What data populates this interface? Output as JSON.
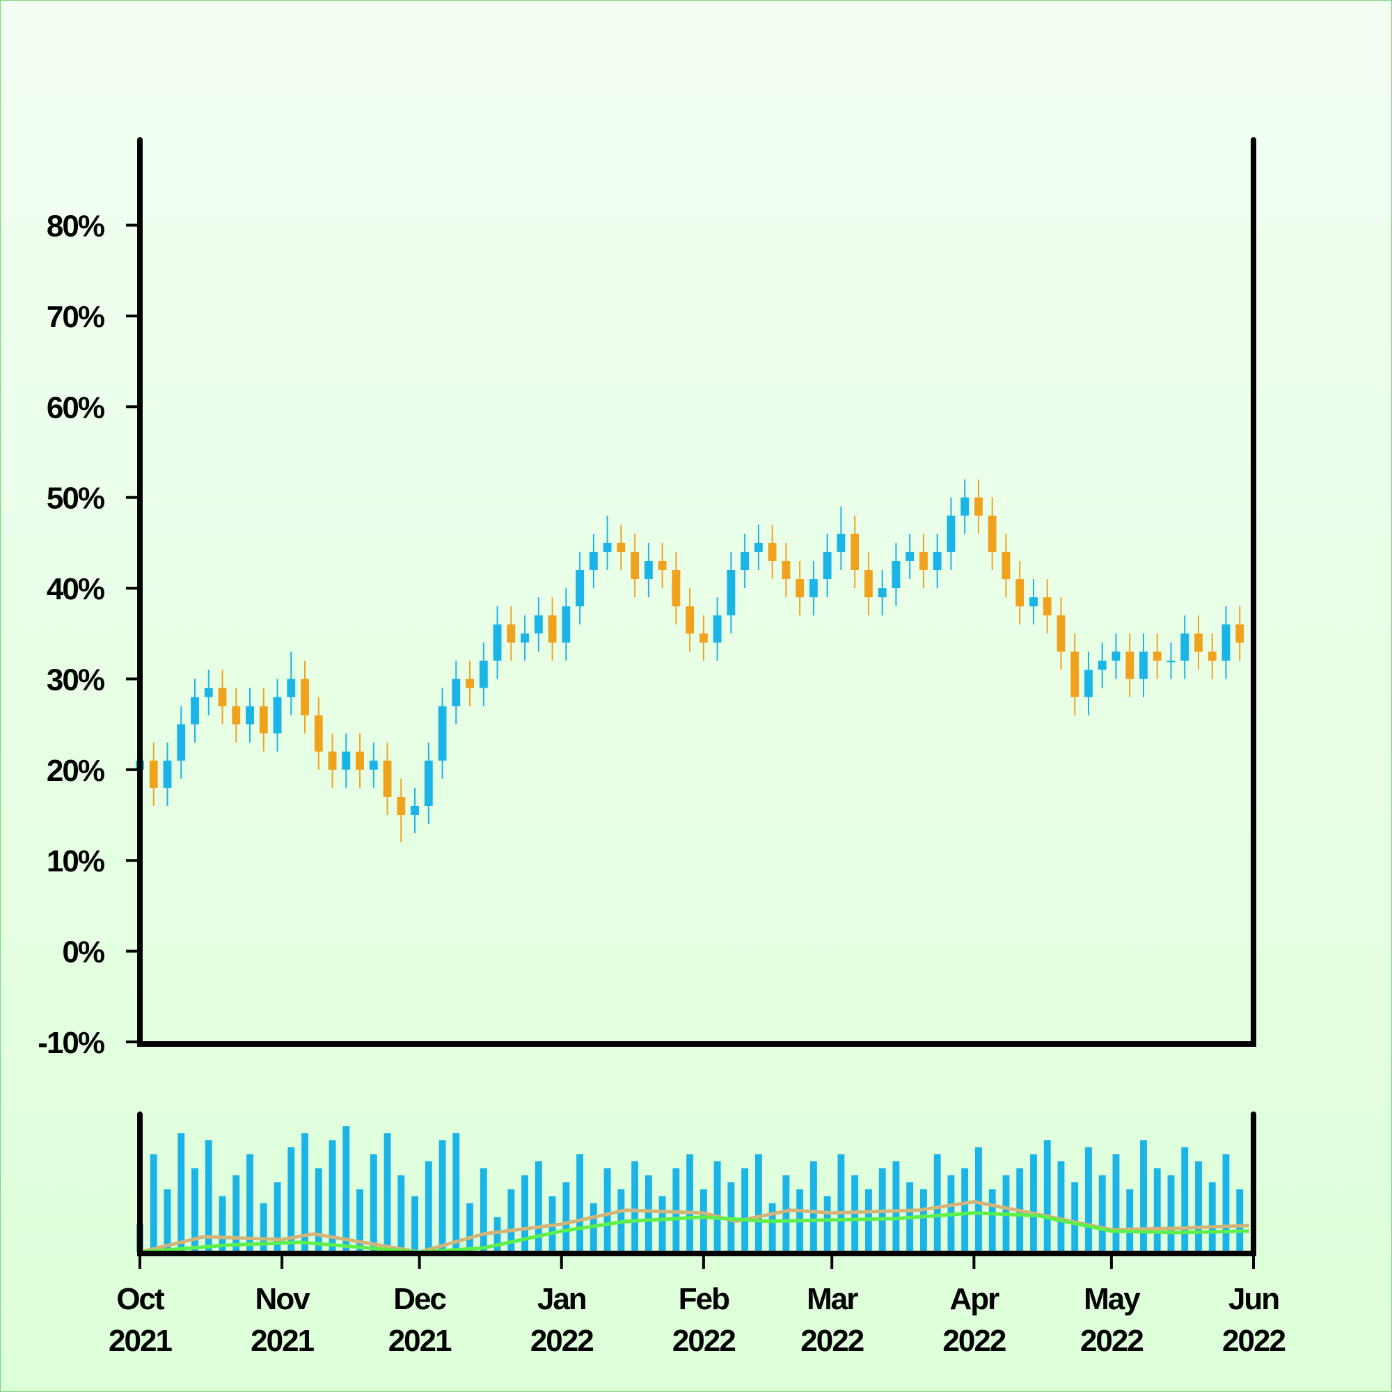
{
  "chart_data": [
    {
      "type": "candlestick",
      "x": [
        "2021-10-01",
        "2021-10-04",
        "2021-10-07",
        "2021-10-10",
        "2021-10-13",
        "2021-10-16",
        "2021-10-19",
        "2021-10-22",
        "2021-10-25",
        "2021-10-28",
        "2021-10-31",
        "2021-11-03",
        "2021-11-06",
        "2021-11-09",
        "2021-11-12",
        "2021-11-15",
        "2021-11-18",
        "2021-11-21",
        "2021-11-24",
        "2021-11-27",
        "2021-11-30",
        "2021-12-03",
        "2021-12-06",
        "2021-12-09",
        "2021-12-12",
        "2021-12-15",
        "2021-12-18",
        "2021-12-21",
        "2021-12-24",
        "2021-12-27",
        "2021-12-30",
        "2022-01-02",
        "2022-01-05",
        "2022-01-08",
        "2022-01-11",
        "2022-01-14",
        "2022-01-17",
        "2022-01-20",
        "2022-01-23",
        "2022-01-26",
        "2022-01-29",
        "2022-02-01",
        "2022-02-04",
        "2022-02-07",
        "2022-02-10",
        "2022-02-13",
        "2022-02-16",
        "2022-02-19",
        "2022-02-22",
        "2022-02-25",
        "2022-02-28",
        "2022-03-03",
        "2022-03-06",
        "2022-03-09",
        "2022-03-12",
        "2022-03-15",
        "2022-03-18",
        "2022-03-21",
        "2022-03-24",
        "2022-03-27",
        "2022-03-30",
        "2022-04-02",
        "2022-04-05",
        "2022-04-08",
        "2022-04-11",
        "2022-04-14",
        "2022-04-17",
        "2022-04-20",
        "2022-04-23",
        "2022-04-26",
        "2022-04-29",
        "2022-05-02",
        "2022-05-05",
        "2022-05-08",
        "2022-05-11",
        "2022-05-14",
        "2022-05-17",
        "2022-05-20",
        "2022-05-23",
        "2022-05-26",
        "2022-05-29"
      ],
      "open": [
        20,
        21,
        18,
        21,
        25,
        28,
        29,
        27,
        25,
        27,
        24,
        28,
        30,
        26,
        22,
        20,
        22,
        20,
        21,
        17,
        15,
        16,
        21,
        27,
        30,
        29,
        32,
        36,
        34,
        35,
        37,
        34,
        38,
        42,
        44,
        45,
        44,
        41,
        43,
        42,
        38,
        35,
        34,
        37,
        42,
        44,
        45,
        43,
        41,
        39,
        41,
        44,
        46,
        42,
        39,
        40,
        43,
        44,
        42,
        44,
        48,
        50,
        48,
        44,
        41,
        38,
        39,
        37,
        33,
        28,
        31,
        32,
        33,
        30,
        33,
        32,
        32,
        35,
        33,
        32,
        36
      ],
      "high": [
        23,
        23,
        23,
        27,
        30,
        31,
        31,
        29,
        29,
        29,
        30,
        33,
        32,
        28,
        24,
        24,
        24,
        23,
        23,
        19,
        18,
        23,
        29,
        32,
        32,
        34,
        38,
        38,
        37,
        39,
        39,
        40,
        44,
        46,
        48,
        47,
        46,
        45,
        45,
        44,
        40,
        37,
        39,
        44,
        46,
        47,
        47,
        45,
        43,
        43,
        46,
        49,
        48,
        44,
        42,
        45,
        46,
        46,
        46,
        50,
        52,
        52,
        50,
        46,
        43,
        41,
        41,
        39,
        35,
        33,
        34,
        35,
        35,
        35,
        35,
        34,
        37,
        37,
        35,
        38,
        38
      ],
      "low": [
        18,
        16,
        16,
        19,
        23,
        26,
        25,
        23,
        23,
        22,
        22,
        26,
        24,
        20,
        18,
        18,
        18,
        18,
        15,
        12,
        13,
        14,
        19,
        25,
        27,
        27,
        30,
        32,
        32,
        33,
        32,
        32,
        36,
        40,
        42,
        42,
        39,
        39,
        40,
        36,
        33,
        32,
        32,
        35,
        40,
        42,
        41,
        39,
        37,
        37,
        39,
        42,
        40,
        37,
        37,
        38,
        41,
        40,
        40,
        42,
        46,
        46,
        42,
        39,
        36,
        36,
        35,
        31,
        26,
        26,
        29,
        30,
        28,
        28,
        30,
        30,
        30,
        31,
        30,
        30,
        32
      ],
      "close": [
        21,
        18,
        21,
        25,
        28,
        29,
        27,
        25,
        27,
        24,
        28,
        30,
        26,
        22,
        20,
        22,
        20,
        21,
        17,
        15,
        16,
        21,
        27,
        30,
        29,
        32,
        36,
        34,
        35,
        37,
        34,
        38,
        42,
        44,
        45,
        44,
        41,
        43,
        42,
        38,
        35,
        34,
        37,
        42,
        44,
        45,
        43,
        41,
        39,
        41,
        44,
        46,
        42,
        39,
        40,
        43,
        44,
        42,
        44,
        48,
        50,
        48,
        44,
        41,
        38,
        39,
        37,
        33,
        28,
        31,
        32,
        33,
        30,
        33,
        32,
        32,
        35,
        33,
        32,
        36,
        34
      ],
      "up_color": "#1ab4e6",
      "down_color": "#f0a21c",
      "xlim": [
        "2021-10-01",
        "2022-06-01"
      ],
      "ylim": [
        -10,
        89.4
      ],
      "yticks": [
        {
          "value": -10,
          "label": "-10%"
        },
        {
          "value": 0,
          "label": "0%"
        },
        {
          "value": 10,
          "label": "10%"
        },
        {
          "value": 20,
          "label": "20%"
        },
        {
          "value": 30,
          "label": "30%"
        },
        {
          "value": 40,
          "label": "40%"
        },
        {
          "value": 50,
          "label": "50%"
        },
        {
          "value": 60,
          "label": "60%"
        },
        {
          "value": 70,
          "label": "70%"
        },
        {
          "value": 80,
          "label": "80%"
        }
      ]
    },
    {
      "type": "bar",
      "values": [
        20,
        70,
        45,
        85,
        60,
        80,
        40,
        55,
        70,
        35,
        50,
        75,
        85,
        60,
        80,
        90,
        45,
        70,
        85,
        55,
        40,
        65,
        80,
        85,
        35,
        60,
        25,
        45,
        55,
        65,
        40,
        50,
        70,
        35,
        60,
        45,
        65,
        55,
        40,
        60,
        70,
        45,
        65,
        50,
        60,
        70,
        35,
        55,
        45,
        65,
        40,
        70,
        55,
        45,
        60,
        65,
        50,
        45,
        70,
        55,
        60,
        75,
        45,
        55,
        60,
        70,
        80,
        65,
        50,
        75,
        55,
        70,
        45,
        80,
        60,
        55,
        75,
        65,
        50,
        70,
        45
      ],
      "color": "#1ab4e6",
      "series": [
        {
          "color": "#d4b478",
          "x": [
            "2021-10-01",
            "2021-10-15",
            "2021-11-01",
            "2021-11-08",
            "2021-12-01",
            "2021-12-15",
            "2022-01-01",
            "2022-01-15",
            "2022-02-01",
            "2022-02-08",
            "2022-02-20",
            "2022-03-01",
            "2022-03-20",
            "2022-04-01",
            "2022-04-15",
            "2022-05-01",
            "2022-05-15",
            "2022-05-31"
          ],
          "values": [
            0,
            11,
            9,
            13,
            0,
            13,
            20,
            30,
            28,
            22,
            30,
            28,
            30,
            36,
            27,
            16,
            17,
            19
          ]
        },
        {
          "color": "#5ef04a",
          "x": [
            "2021-10-01",
            "2021-10-20",
            "2021-11-05",
            "2021-12-01",
            "2021-12-15",
            "2022-01-01",
            "2022-01-15",
            "2022-02-01",
            "2022-02-15",
            "2022-03-01",
            "2022-03-15",
            "2022-04-01",
            "2022-04-15",
            "2022-05-01",
            "2022-05-15",
            "2022-05-31"
          ],
          "values": [
            0,
            5,
            7,
            0,
            3,
            15,
            22,
            25,
            22,
            23,
            24,
            28,
            26,
            15,
            14,
            15
          ]
        }
      ],
      "xlim": [
        "2021-10-01",
        "2022-06-01"
      ],
      "ylim": [
        0,
        100
      ],
      "xticks": [
        {
          "value": "2021-10-01",
          "label": "Oct 2021"
        },
        {
          "value": "2021-11-01",
          "label": "Nov 2021"
        },
        {
          "value": "2021-12-01",
          "label": "Dec 2021"
        },
        {
          "value": "2022-01-01",
          "label": "Jan 2022"
        },
        {
          "value": "2022-02-01",
          "label": "Feb 2022"
        },
        {
          "value": "2022-03-01",
          "label": "Mar 2022"
        },
        {
          "value": "2022-04-01",
          "label": "Apr 2022"
        },
        {
          "value": "2022-05-01",
          "label": "May 2022"
        },
        {
          "value": "2022-06-01",
          "label": "Jun 2022"
        }
      ]
    }
  ]
}
